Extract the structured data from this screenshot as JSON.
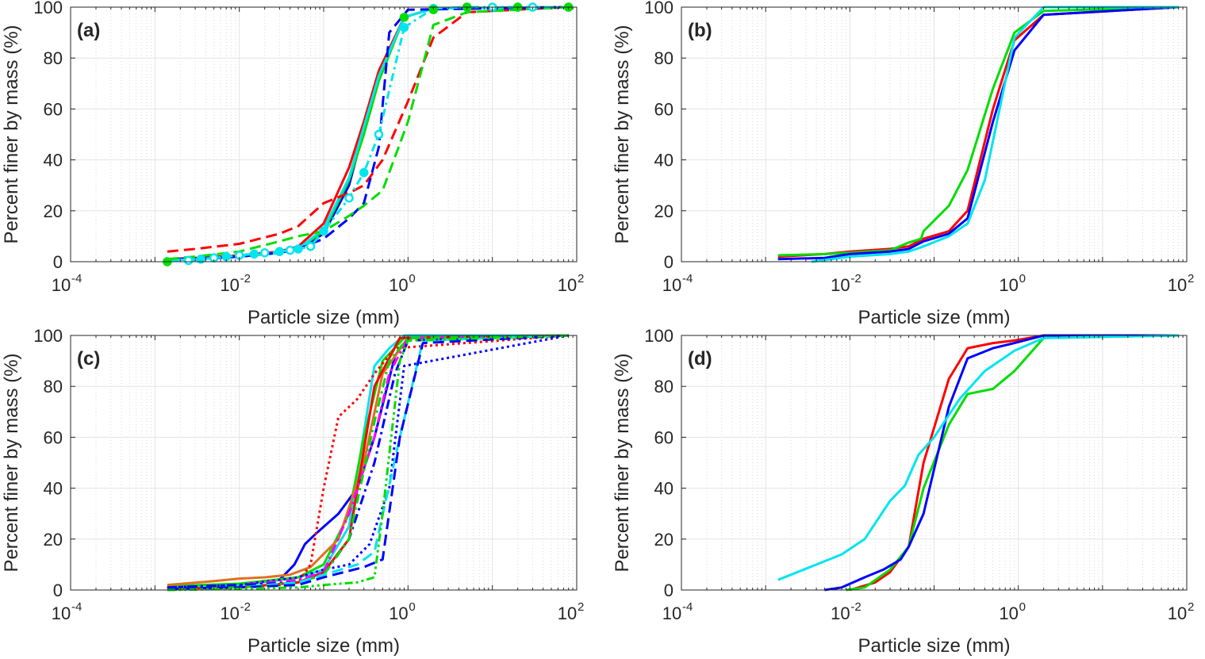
{
  "chart_data": [
    {
      "type": "line",
      "panel_label": "(a)",
      "xlabel": "Particle size (mm)",
      "ylabel": "Percent finer by mass (%)",
      "x_scale": "log",
      "xlim": [
        0.0001,
        100
      ],
      "ylim": [
        0,
        100
      ],
      "x_ticks": [
        {
          "base": "10",
          "exp": "-4"
        },
        {
          "base": "10",
          "exp": "-2"
        },
        {
          "base": "10",
          "exp": "0"
        },
        {
          "base": "10",
          "exp": "2"
        }
      ],
      "y_ticks": [
        "0",
        "20",
        "40",
        "60",
        "80",
        "100"
      ],
      "grid": true,
      "series": [
        {
          "color": "#ff0000",
          "style": "solid",
          "x": [
            0.0014,
            0.003,
            0.01,
            0.03,
            0.05,
            0.1,
            0.2,
            0.3,
            0.45,
            0.9,
            2,
            80
          ],
          "y": [
            1,
            1.5,
            2.5,
            4,
            6,
            15,
            37,
            55,
            75,
            96,
            99.5,
            100
          ]
        },
        {
          "color": "#0000ff",
          "style": "solid",
          "x": [
            0.0014,
            0.003,
            0.01,
            0.03,
            0.05,
            0.1,
            0.2,
            0.3,
            0.45,
            0.9,
            2,
            80
          ],
          "y": [
            1,
            1.2,
            2,
            3.5,
            5,
            11,
            30,
            52,
            72,
            96,
            99.5,
            100
          ]
        },
        {
          "color": "#00dd00",
          "style": "solid",
          "x": [
            0.0014,
            0.003,
            0.01,
            0.03,
            0.05,
            0.1,
            0.2,
            0.3,
            0.45,
            0.9,
            2,
            80
          ],
          "y": [
            0.5,
            1,
            2,
            3.5,
            5,
            12,
            32,
            50,
            71,
            96,
            99.5,
            100
          ]
        },
        {
          "color": "#00e5ee",
          "style": "solid",
          "x": [
            0.0014,
            0.003,
            0.01,
            0.03,
            0.05,
            0.1,
            0.2,
            0.3,
            0.45,
            0.9,
            2,
            80
          ],
          "y": [
            0.5,
            1,
            2,
            3.5,
            5,
            13,
            33,
            53,
            73,
            96,
            99.5,
            100
          ]
        },
        {
          "color": "#ff0000",
          "style": "dashed",
          "x": [
            0.0014,
            0.003,
            0.01,
            0.03,
            0.05,
            0.1,
            0.2,
            0.3,
            0.5,
            1,
            2,
            5,
            80
          ],
          "y": [
            4,
            5,
            7,
            11,
            14,
            23,
            27,
            30,
            40,
            63,
            88,
            98,
            100
          ]
        },
        {
          "color": "#0000ff",
          "style": "dashed",
          "x": [
            0.003,
            0.01,
            0.03,
            0.05,
            0.1,
            0.2,
            0.3,
            0.45,
            0.6,
            1,
            80
          ],
          "y": [
            1,
            2,
            3.5,
            5,
            9,
            17,
            23,
            45,
            90,
            99,
            100
          ]
        },
        {
          "color": "#00dd00",
          "style": "dashed",
          "x": [
            0.0014,
            0.003,
            0.01,
            0.03,
            0.05,
            0.1,
            0.2,
            0.3,
            0.5,
            1,
            2,
            5,
            80
          ],
          "y": [
            1,
            2,
            4,
            8,
            10,
            12,
            18,
            22,
            28,
            55,
            93,
            98,
            100
          ]
        },
        {
          "color": "#00e5ee",
          "style": "dash-dot-markers",
          "x": [
            0.0025,
            0.0035,
            0.005,
            0.007,
            0.01,
            0.015,
            0.02,
            0.03,
            0.04,
            0.05,
            0.07,
            0.1,
            0.2,
            0.3,
            0.45,
            0.9,
            2,
            5,
            10,
            20,
            30,
            80
          ],
          "y": [
            0.5,
            1,
            1.5,
            2,
            2.5,
            3,
            3.5,
            4,
            4.5,
            5,
            6,
            12,
            25,
            35,
            50,
            92,
            99.5,
            100,
            100,
            100,
            100,
            100
          ]
        },
        {
          "color": "#00dd00",
          "style": "markers",
          "x": [
            0.0014,
            0.9,
            2,
            5,
            20,
            80
          ],
          "y": [
            0,
            96,
            99,
            100,
            100,
            100
          ]
        }
      ]
    },
    {
      "type": "line",
      "panel_label": "(b)",
      "xlabel": "Particle size (mm)",
      "ylabel": "Percent finer by mass (%)",
      "x_scale": "log",
      "xlim": [
        0.0001,
        100
      ],
      "ylim": [
        0,
        100
      ],
      "x_ticks": [
        {
          "base": "10",
          "exp": "-4"
        },
        {
          "base": "10",
          "exp": "-2"
        },
        {
          "base": "10",
          "exp": "0"
        },
        {
          "base": "10",
          "exp": "2"
        }
      ],
      "y_ticks": [
        "0",
        "20",
        "40",
        "60",
        "80",
        "100"
      ],
      "grid": true,
      "series": [
        {
          "color": "#ff0000",
          "style": "solid",
          "x": [
            0.0014,
            0.005,
            0.01,
            0.03,
            0.05,
            0.075,
            0.15,
            0.25,
            0.5,
            0.9,
            2,
            80
          ],
          "y": [
            2,
            3,
            4,
            5,
            6,
            9,
            12,
            20,
            60,
            87,
            97,
            100
          ]
        },
        {
          "color": "#00dd00",
          "style": "solid",
          "x": [
            0.0014,
            0.005,
            0.01,
            0.03,
            0.05,
            0.07,
            0.075,
            0.15,
            0.25,
            0.5,
            0.9,
            2,
            80
          ],
          "y": [
            2.5,
            3,
            3.5,
            4.5,
            7.5,
            9,
            12,
            22,
            36,
            68,
            90,
            98.5,
            100
          ]
        },
        {
          "color": "#0000ff",
          "style": "solid",
          "x": [
            0.0014,
            0.005,
            0.01,
            0.03,
            0.05,
            0.075,
            0.15,
            0.25,
            0.5,
            0.9,
            2,
            80
          ],
          "y": [
            1,
            1.5,
            3,
            4,
            5,
            8,
            11,
            17,
            55,
            83,
            97,
            100
          ]
        },
        {
          "color": "#00e5ee",
          "style": "solid",
          "x": [
            0.0035,
            0.006,
            0.01,
            0.03,
            0.05,
            0.075,
            0.15,
            0.25,
            0.4,
            0.9,
            2,
            80
          ],
          "y": [
            0,
            1,
            2,
            3,
            4,
            6,
            10,
            15,
            32,
            88,
            100,
            100
          ]
        }
      ]
    },
    {
      "type": "line",
      "panel_label": "(c)",
      "xlabel": "Particle size (mm)",
      "ylabel": "Percent finer by mass (%)",
      "x_scale": "log",
      "xlim": [
        0.0001,
        100
      ],
      "ylim": [
        0,
        100
      ],
      "x_ticks": [
        {
          "base": "10",
          "exp": "-4"
        },
        {
          "base": "10",
          "exp": "-2"
        },
        {
          "base": "10",
          "exp": "0"
        },
        {
          "base": "10",
          "exp": "2"
        }
      ],
      "y_ticks": [
        "0",
        "20",
        "40",
        "60",
        "80",
        "100"
      ],
      "grid": true,
      "series": [
        {
          "color": "#0000ff",
          "style": "solid",
          "x": [
            0.0014,
            0.01,
            0.03,
            0.045,
            0.06,
            0.08,
            0.15,
            0.25,
            0.4,
            0.7,
            1,
            80
          ],
          "y": [
            1,
            2,
            4,
            10,
            18,
            22,
            30,
            40,
            60,
            92,
            99,
            100
          ]
        },
        {
          "color": "#00e5ee",
          "style": "solid",
          "x": [
            0.0014,
            0.01,
            0.05,
            0.1,
            0.2,
            0.4,
            0.6,
            0.9,
            80
          ],
          "y": [
            1,
            2,
            5,
            8,
            25,
            88,
            95,
            100,
            100
          ]
        },
        {
          "color": "#00dd00",
          "style": "solid",
          "x": [
            0.0014,
            0.01,
            0.05,
            0.1,
            0.2,
            0.3,
            0.5,
            0.9,
            80
          ],
          "y": [
            1.5,
            2.5,
            5,
            10,
            30,
            60,
            90,
            99,
            100
          ]
        },
        {
          "color": "#e07020",
          "style": "solid",
          "x": [
            0.0014,
            0.005,
            0.01,
            0.02,
            0.04,
            0.07,
            0.15,
            0.3,
            0.5,
            1,
            80
          ],
          "y": [
            2,
            3.5,
            4.5,
            5,
            6,
            9,
            20,
            50,
            85,
            99,
            100
          ]
        },
        {
          "color": "#ff0000",
          "style": "solid",
          "x": [
            0.0014,
            0.01,
            0.05,
            0.1,
            0.2,
            0.4,
            0.8,
            80
          ],
          "y": [
            0.5,
            1,
            3,
            7,
            20,
            80,
            99,
            100
          ]
        },
        {
          "color": "#ff0000",
          "style": "dotted",
          "x": [
            0.0014,
            0.01,
            0.03,
            0.05,
            0.07,
            0.1,
            0.15,
            0.25,
            0.4,
            0.7,
            80
          ],
          "y": [
            0.5,
            1,
            2,
            3,
            10,
            40,
            68,
            75,
            85,
            95,
            100
          ]
        },
        {
          "color": "#0000ff",
          "style": "dotted",
          "x": [
            0.0014,
            0.01,
            0.05,
            0.1,
            0.2,
            0.35,
            0.6,
            0.9,
            80
          ],
          "y": [
            1,
            2,
            5,
            8,
            10,
            18,
            40,
            88,
            100
          ]
        },
        {
          "color": "#ff00ff",
          "style": "dashdot",
          "x": [
            0.0014,
            0.01,
            0.05,
            0.1,
            0.2,
            0.4,
            0.6,
            1,
            80
          ],
          "y": [
            1,
            2,
            4,
            7,
            30,
            60,
            85,
            99,
            100
          ]
        },
        {
          "color": "#0000ff",
          "style": "dashdot",
          "x": [
            0.0014,
            0.01,
            0.05,
            0.1,
            0.2,
            0.4,
            0.7,
            1,
            80
          ],
          "y": [
            1,
            2,
            3,
            6,
            20,
            50,
            85,
            98,
            100
          ]
        },
        {
          "color": "#00dd00",
          "style": "dashdot",
          "x": [
            0.0014,
            0.01,
            0.05,
            0.1,
            0.2,
            0.4,
            0.6,
            1,
            80
          ],
          "y": [
            0,
            1,
            3,
            6,
            20,
            66,
            90,
            99,
            100
          ]
        },
        {
          "color": "#00e5ee",
          "style": "dashed",
          "x": [
            0.0014,
            0.01,
            0.05,
            0.1,
            0.25,
            0.4,
            0.8,
            1.5,
            80
          ],
          "y": [
            0.5,
            1,
            3,
            6,
            10,
            15,
            60,
            98,
            100
          ]
        },
        {
          "color": "#0000ff",
          "style": "dashed",
          "x": [
            0.0014,
            0.01,
            0.05,
            0.1,
            0.3,
            0.5,
            0.8,
            1.5,
            80
          ],
          "y": [
            0.5,
            1,
            2,
            5,
            9,
            12,
            60,
            97,
            100
          ]
        },
        {
          "color": "#00dd00",
          "style": "dashdotdot",
          "x": [
            0.0014,
            0.01,
            0.05,
            0.1,
            0.25,
            0.4,
            0.5,
            0.8,
            1,
            80
          ],
          "y": [
            0,
            0.5,
            1,
            2,
            3,
            5,
            30,
            90,
            98,
            100
          ]
        }
      ]
    },
    {
      "type": "line",
      "panel_label": "(d)",
      "xlabel": "Particle size (mm)",
      "ylabel": "Percent finer by mass (%)",
      "x_scale": "log",
      "xlim": [
        0.0001,
        100
      ],
      "ylim": [
        0,
        100
      ],
      "x_ticks": [
        {
          "base": "10",
          "exp": "-4"
        },
        {
          "base": "10",
          "exp": "-2"
        },
        {
          "base": "10",
          "exp": "0"
        },
        {
          "base": "10",
          "exp": "2"
        }
      ],
      "y_ticks": [
        "0",
        "20",
        "40",
        "60",
        "80",
        "100"
      ],
      "grid": true,
      "series": [
        {
          "color": "#ff0000",
          "style": "solid",
          "x": [
            0.01,
            0.02,
            0.03,
            0.05,
            0.075,
            0.15,
            0.25,
            0.5,
            0.9,
            2,
            80
          ],
          "y": [
            0,
            3,
            7,
            17,
            50,
            83,
            95,
            97,
            98,
            100,
            100
          ]
        },
        {
          "color": "#00dd00",
          "style": "solid",
          "x": [
            0.009,
            0.015,
            0.03,
            0.05,
            0.075,
            0.15,
            0.25,
            0.5,
            0.9,
            2,
            80
          ],
          "y": [
            0,
            1,
            8,
            17,
            40,
            65,
            77,
            79,
            86,
            99,
            100
          ]
        },
        {
          "color": "#0000ff",
          "style": "solid",
          "x": [
            0.005,
            0.008,
            0.015,
            0.025,
            0.04,
            0.05,
            0.075,
            0.15,
            0.25,
            0.5,
            0.9,
            2,
            80
          ],
          "y": [
            0,
            1,
            5,
            8,
            12,
            17,
            30,
            72,
            91,
            95,
            97,
            100,
            100
          ]
        },
        {
          "color": "#00e5ee",
          "style": "solid",
          "x": [
            0.0014,
            0.002,
            0.004,
            0.008,
            0.015,
            0.03,
            0.045,
            0.065,
            0.1,
            0.2,
            0.4,
            0.9,
            2,
            80
          ],
          "y": [
            4,
            6,
            10,
            14,
            20,
            35,
            41,
            53,
            60,
            75,
            86,
            94,
            99,
            100
          ]
        }
      ]
    }
  ]
}
